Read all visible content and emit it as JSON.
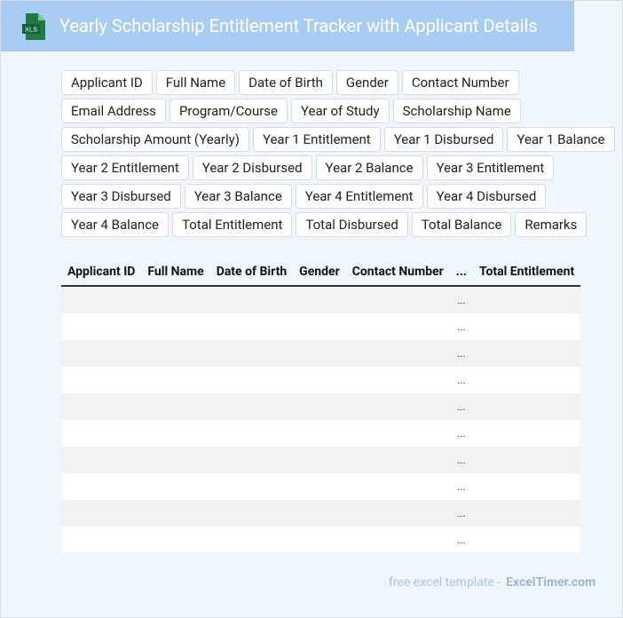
{
  "header": {
    "icon": "XLS",
    "title": "Yearly Scholarship Entitlement Tracker with Applicant Details"
  },
  "fields": [
    "Applicant ID",
    "Full Name",
    "Date of Birth",
    "Gender",
    "Contact Number",
    "Email Address",
    "Program/Course",
    "Year of Study",
    "Scholarship Name",
    "Scholarship Amount (Yearly)",
    "Year 1 Entitlement",
    "Year 1 Disbursed",
    "Year 1 Balance",
    "Year 2 Entitlement",
    "Year 2 Disbursed",
    "Year 2 Balance",
    "Year 3 Entitlement",
    "Year 3 Disbursed",
    "Year 3 Balance",
    "Year 4 Entitlement",
    "Year 4 Disbursed",
    "Year 4 Balance",
    "Total Entitlement",
    "Total Disbursed",
    "Total Balance",
    "Remarks"
  ],
  "table": {
    "headers": [
      "Applicant ID",
      "Full Name",
      "Date of Birth",
      "Gender",
      "Contact Number",
      "...",
      "Total Entitlement"
    ],
    "rows": [
      "...",
      "...",
      "...",
      "...",
      "...",
      "...",
      "...",
      "...",
      "...",
      "..."
    ]
  },
  "footer": {
    "text": "free excel template -",
    "brand": "ExcelTimer.com"
  }
}
